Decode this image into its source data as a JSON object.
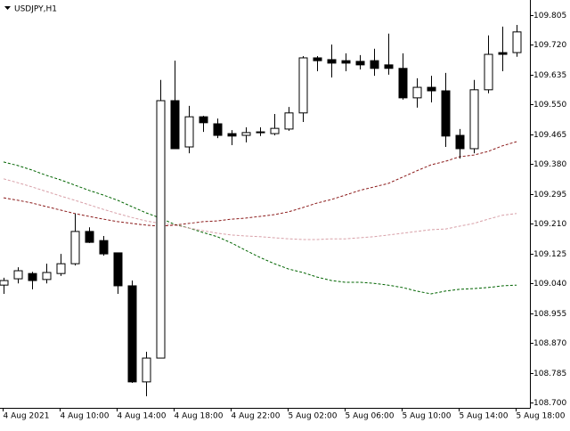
{
  "chart_data": {
    "type": "candlestick",
    "title": "USDJPY,H1",
    "categories": [
      "4 Aug 2021",
      null,
      null,
      null,
      "4 Aug 10:00",
      null,
      null,
      null,
      "4 Aug 14:00",
      null,
      null,
      null,
      "4 Aug 18:00",
      null,
      null,
      null,
      "4 Aug 22:00",
      null,
      null,
      null,
      "5 Aug 02:00",
      null,
      null,
      null,
      "5 Aug 06:00",
      null,
      null,
      null,
      "5 Aug 10:00",
      null,
      null,
      null,
      "5 Aug 14:00",
      null,
      null,
      null,
      "5 Aug 18:00"
    ],
    "open": [
      109.035,
      109.053,
      109.068,
      109.051,
      109.068,
      109.096,
      109.188,
      109.162,
      109.127,
      109.033,
      108.759,
      108.827,
      109.561,
      109.429,
      109.515,
      109.495,
      109.467,
      109.462,
      109.472,
      109.467,
      109.48,
      109.526,
      109.683,
      109.678,
      109.675,
      109.673,
      109.675,
      109.663,
      109.653,
      109.569,
      109.599,
      109.589,
      109.462,
      109.424,
      109.592,
      109.698,
      109.698
    ],
    "high": [
      109.056,
      109.086,
      109.073,
      109.096,
      109.124,
      109.239,
      109.2,
      109.175,
      109.127,
      109.048,
      108.845,
      109.62,
      109.675,
      109.546,
      109.518,
      109.51,
      109.477,
      109.485,
      109.485,
      109.523,
      109.543,
      109.688,
      109.688,
      109.721,
      109.696,
      109.691,
      109.709,
      109.752,
      109.696,
      109.625,
      109.632,
      109.64,
      109.48,
      109.62,
      109.747,
      109.772,
      109.777
    ],
    "low": [
      109.01,
      109.04,
      109.023,
      109.04,
      109.061,
      109.091,
      109.155,
      109.119,
      109.01,
      108.756,
      108.718,
      108.827,
      109.424,
      109.411,
      109.472,
      109.454,
      109.434,
      109.442,
      109.46,
      109.462,
      109.475,
      109.5,
      109.645,
      109.627,
      109.645,
      109.65,
      109.632,
      109.635,
      109.564,
      109.541,
      109.556,
      109.429,
      109.396,
      109.411,
      109.582,
      109.645,
      109.686
    ],
    "close": [
      109.048,
      109.076,
      109.048,
      109.071,
      109.096,
      109.188,
      109.157,
      109.124,
      109.033,
      108.759,
      108.827,
      109.561,
      109.424,
      109.515,
      109.498,
      109.462,
      109.46,
      109.47,
      109.47,
      109.482,
      109.526,
      109.683,
      109.675,
      109.668,
      109.668,
      109.663,
      109.653,
      109.653,
      109.569,
      109.599,
      109.589,
      109.46,
      109.424,
      109.592,
      109.693,
      109.693,
      109.757
    ],
    "bull_color": "#ffffff",
    "bear_color": "#000000",
    "lines": [
      {
        "color": "#006400",
        "values": [
          109.386,
          109.376,
          109.363,
          109.348,
          109.335,
          109.32,
          109.305,
          109.292,
          109.277,
          109.259,
          109.241,
          109.226,
          109.208,
          109.198,
          109.185,
          109.173,
          109.155,
          109.134,
          109.114,
          109.096,
          109.081,
          109.071,
          109.058,
          109.048,
          109.043,
          109.043,
          109.04,
          109.035,
          109.028,
          109.018,
          109.01,
          109.018,
          109.023,
          109.025,
          109.028,
          109.033,
          109.035
        ]
      },
      {
        "color": "#d8a0a8",
        "values": [
          109.338,
          109.327,
          109.315,
          109.302,
          109.289,
          109.277,
          109.264,
          109.251,
          109.239,
          109.228,
          109.218,
          109.211,
          109.206,
          109.198,
          109.19,
          109.183,
          109.178,
          109.175,
          109.173,
          109.17,
          109.167,
          109.165,
          109.165,
          109.167,
          109.167,
          109.17,
          109.173,
          109.178,
          109.183,
          109.188,
          109.193,
          109.195,
          109.203,
          109.211,
          109.223,
          109.234,
          109.239
        ]
      },
      {
        "color": "#8b1a1a",
        "values": [
          109.284,
          109.277,
          109.269,
          109.259,
          109.249,
          109.239,
          109.231,
          109.223,
          109.216,
          109.211,
          109.206,
          109.203,
          109.206,
          109.211,
          109.216,
          109.218,
          109.223,
          109.226,
          109.231,
          109.236,
          109.244,
          109.256,
          109.269,
          109.279,
          109.292,
          109.305,
          109.315,
          109.325,
          109.343,
          109.361,
          109.378,
          109.388,
          109.401,
          109.406,
          109.416,
          109.432,
          109.444
        ]
      }
    ],
    "ylim": [
      108.685,
      109.848
    ],
    "yticks": [
      109.805,
      {
        "value": 109.72,
        "label": "109.720"
      },
      109.635,
      {
        "value": 109.55,
        "label": "109.550"
      },
      109.465,
      {
        "value": 109.38,
        "label": "109.380"
      },
      109.295,
      {
        "value": 109.21,
        "label": "109.210"
      },
      109.125,
      {
        "value": 109.04,
        "label": "109.040"
      },
      108.955,
      {
        "value": 108.87,
        "label": "108.870"
      },
      108.785,
      {
        "value": 108.7,
        "label": "108.700"
      }
    ]
  }
}
